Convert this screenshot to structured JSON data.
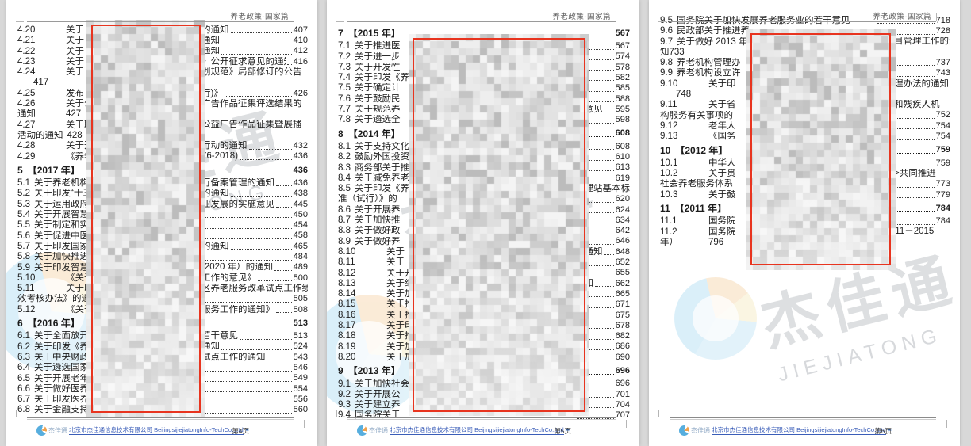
{
  "header": {
    "title": "养老政策-国家篇"
  },
  "watermark": {
    "cn": "杰佳通",
    "en": "JIEJIATONG"
  },
  "footer": {
    "logo_cn": "杰佳通",
    "company_cn": "北京市杰佳通信息技术有限公司",
    "company_en": "BeijingsijiejiatongInfo-TechCo.,Ltd",
    "link_mark": "≡"
  },
  "colors": {
    "redact_border": "#e8341f",
    "footer_link": "#3a5db8",
    "body_text": "#1c1c1c"
  },
  "pages": [
    {
      "page_label": "第4页",
      "rows": [
        {
          "n": "4.20",
          "t": 1,
          "a": "关于",
          "b": "的通知",
          "d": 1,
          "p": "407"
        },
        {
          "n": "4.21",
          "t": 1,
          "a": "关于",
          "b": "通知",
          "d": 1,
          "p": "410"
        },
        {
          "n": "4.22",
          "t": 1,
          "a": "关于",
          "b": "通知",
          "d": 1,
          "p": "412"
        },
        {
          "n": "4.23",
          "t": 1,
          "a": "关于",
          "b": "》公开征求意见的通知",
          "d": 1,
          "p": "416"
        },
        {
          "n": "4.24",
          "t": 1,
          "a": "关于",
          "b": "划规范》局部修订的公告"
        },
        {
          "a": "417",
          "i": 1
        },
        {
          "n": "4.25",
          "t": 1,
          "a": "发布《",
          "b": "行)》",
          "d": 1,
          "p": "426"
        },
        {
          "n": "4.26",
          "t": 1,
          "a": "关于公",
          "b": "广告作品征集评选结果的"
        },
        {
          "n": "通知",
          "t": 1,
          "a": "427"
        },
        {
          "n": "4.27",
          "t": 1,
          "a": "关于联",
          "b": "公益广告作品征集暨展播"
        },
        {
          "n": "活动的通知",
          "t": 1,
          "a": "428"
        },
        {
          "n": "4.28",
          "t": 1,
          "a": "关于开",
          "b": "行动的通知",
          "d": 1,
          "p": "432"
        },
        {
          "n": "4.29",
          "t": 1,
          "a": "《养老",
          "b": "76-2018)",
          "d": 1,
          "p": "436"
        },
        {
          "n": "5",
          "a": "【2017 年】",
          "s": 1,
          "d": 1,
          "p": "436"
        },
        {
          "n": "5.1",
          "a": "关于养老机构内",
          "b": "行备案管理的通知",
          "d": 1,
          "p": "436"
        },
        {
          "n": "5.2",
          "a": "关于印发“十三",
          "b": "的通知",
          "d": 1,
          "p": "438"
        },
        {
          "n": "5.3",
          "a": "关于运用政府和",
          "b": "业发展的实施意见",
          "d": 1,
          "p": "445"
        },
        {
          "n": "5.4",
          "a": "关于开展智慧",
          "d": 1,
          "p": "450"
        },
        {
          "n": "5.5",
          "a": "关于制定和实",
          "d": 1,
          "p": "454"
        },
        {
          "n": "5.6",
          "a": "关于促进中医",
          "d": 1,
          "p": "458"
        },
        {
          "n": "5.7",
          "a": "关于印发国家",
          "b": "的通知",
          "d": 1,
          "p": "465"
        },
        {
          "n": "5.8",
          "a": "关于加快推进",
          "d": 1,
          "p": "484"
        },
        {
          "n": "5.9",
          "a": "关于印发智慧",
          "b": "-2020 年）的通知",
          "d": 1,
          "p": "489"
        },
        {
          "n": "5.10",
          "t": 1,
          "a": "《关于",
          "b": "工作的意见》",
          "d": 1,
          "p": "500"
        },
        {
          "n": "5.11",
          "t": 1,
          "a": "关于印",
          "b": "区养老服务改革试点工作绩"
        },
        {
          "a": "效考核办法》的通",
          "d": 1,
          "p": "505"
        },
        {
          "n": "5.12",
          "t": 1,
          "a": "《关于",
          "b": "服务工作的通知》",
          "d": 1,
          "p": "508"
        },
        {
          "n": "6",
          "a": "【2016 年】",
          "s": 1,
          "d": 1,
          "p": "513"
        },
        {
          "n": "6.1",
          "a": "关于全面放开养",
          "b": "若干意见",
          "d": 1,
          "p": "513"
        },
        {
          "n": "6.2",
          "a": "关于印发《养老",
          "b": "通知",
          "d": 1,
          "p": "524"
        },
        {
          "n": "6.3",
          "a": "关于中央财政支",
          "b": "试点工作的通知",
          "d": 1,
          "p": "543"
        },
        {
          "n": "6.4",
          "a": "关于遴选国家级",
          "d": 1,
          "p": "546"
        },
        {
          "n": "6.5",
          "a": "关于开展老年人",
          "d": 1,
          "p": "549"
        },
        {
          "n": "6.6",
          "a": "关于做好医养结",
          "d": 1,
          "p": "554"
        },
        {
          "n": "6.7",
          "a": "关于印发医养结",
          "d": 1,
          "p": "556"
        },
        {
          "n": "6.8",
          "a": "关于金融支持养",
          "d": 1,
          "p": "560"
        }
      ]
    },
    {
      "page_label": "第5页",
      "rows": [
        {
          "n": "7",
          "a": "【2015 年】",
          "s": 1,
          "d": 1,
          "p": "567"
        },
        {
          "n": "7.1",
          "a": "关于推进医",
          "d": 1,
          "p": "567"
        },
        {
          "n": "7.2",
          "a": "关于进一步",
          "d": 1,
          "p": "574"
        },
        {
          "n": "7.3",
          "a": "关于开发性",
          "d": 1,
          "p": "578"
        },
        {
          "n": "7.4",
          "a": "关于印发《养",
          "d": 1,
          "p": "582"
        },
        {
          "n": "7.5",
          "a": "关于确定计",
          "d": 1,
          "p": "585"
        },
        {
          "n": "7.6",
          "a": "关于鼓励民",
          "d": 1,
          "p": "588"
        },
        {
          "n": "7.7",
          "a": "关于规范养",
          "b": "导意见",
          "d": 1,
          "p": "595"
        },
        {
          "n": "7.8",
          "a": "关于遴选全",
          "d": 1,
          "p": "598"
        },
        {
          "n": "8",
          "a": "【2014 年】",
          "s": 1,
          "d": 1,
          "p": "608"
        },
        {
          "n": "8.1",
          "a": "关于支持文化",
          "d": 1,
          "p": "608"
        },
        {
          "n": "8.2",
          "a": "鼓励外国投资",
          "d": 1,
          "p": "610"
        },
        {
          "n": "8.3",
          "a": "商务部关于推",
          "d": 1,
          "p": "613"
        },
        {
          "n": "8.4",
          "a": "关于减免养老",
          "d": 1,
          "p": "619"
        },
        {
          "n": "8.5",
          "a": "关于印发《养",
          "b": "护理站基本标"
        },
        {
          "a": "准（试行）》的",
          "d": 1,
          "p": "620"
        },
        {
          "n": "8.6",
          "a": "关于开展养",
          "d": 1,
          "p": "624"
        },
        {
          "n": "8.7",
          "a": "关于加快推",
          "d": 1,
          "p": "634"
        },
        {
          "n": "8.8",
          "a": "关于做好政",
          "d": 1,
          "p": "642"
        },
        {
          "n": "8.9",
          "a": "关于做好养",
          "d": 1,
          "p": "646"
        },
        {
          "n": "8.10",
          "t": 1,
          "a": "关于",
          "b": "的通知",
          "d": 1,
          "p": "648"
        },
        {
          "n": "8.11",
          "t": 1,
          "a": "关于",
          "d": 1,
          "p": "652"
        },
        {
          "n": "8.12",
          "t": 1,
          "a": "关于开",
          "d": 1,
          "p": "655"
        },
        {
          "n": "8.13",
          "t": 1,
          "a": "关于继",
          "b": "通知",
          "d": 1,
          "p": "662"
        },
        {
          "n": "8.14",
          "t": 1,
          "a": "关于加",
          "d": 1,
          "p": "665"
        },
        {
          "n": "8.15",
          "t": 1,
          "a": "关于推",
          "d": 1,
          "p": "671"
        },
        {
          "n": "8.16",
          "t": 1,
          "a": "关于推",
          "d": 1,
          "p": "675"
        },
        {
          "n": "8.17",
          "t": 1,
          "a": "关于印",
          "d": 1,
          "p": "678"
        },
        {
          "n": "8.18",
          "t": 1,
          "a": "关于推",
          "d": 1,
          "p": "682"
        },
        {
          "n": "8.19",
          "t": 1,
          "a": "关于加",
          "d": 1,
          "p": "686"
        },
        {
          "n": "8.20",
          "t": 1,
          "a": "关于加",
          "d": 1,
          "p": "690"
        },
        {
          "n": "9",
          "a": "【2013 年】",
          "s": 1,
          "d": 1,
          "p": "696"
        },
        {
          "n": "9.1",
          "a": "关于加快社会",
          "d": 1,
          "p": "696"
        },
        {
          "n": "9.2",
          "a": "关于开展公",
          "d": 1,
          "p": "701"
        },
        {
          "n": "9.3",
          "a": "关于建立养",
          "b": "知",
          "d": 1,
          "p": "704"
        },
        {
          "n": "9.4",
          "a": "国务院关于",
          "d": 1,
          "p": "707"
        }
      ]
    },
    {
      "page_label": "第6页",
      "rows": [
        {
          "n": "9.5",
          "a": "国务院关于加快发展养老服务业的若干意见",
          "d": 1,
          "p": "718"
        },
        {
          "n": "9.6",
          "a": "民政部关于推进养",
          "d": 1,
          "p": "728"
        },
        {
          "n": "9.7",
          "a": "关于做好 2013 年",
          "b": "院项目管理工作的通"
        },
        {
          "a": "知733"
        },
        {
          "n": "9.8",
          "a": "养老机构管理办",
          "d": 1,
          "p": "737"
        },
        {
          "n": "9.9",
          "a": "养老机构设立许",
          "d": 1,
          "p": "743"
        },
        {
          "n": "9.10",
          "t": 1,
          "a": "关于印",
          "b": "目管理办法的通知"
        },
        {
          "a": "748",
          "i": 1
        },
        {
          "n": "9.11",
          "t": 1,
          "a": "关于省",
          "b": "机构和残疾人机"
        },
        {
          "a": "构服务有关事项的",
          "d": 1,
          "p": "752"
        },
        {
          "n": "9.12",
          "t": 1,
          "a": "老年人",
          "d": 1,
          "p": "754"
        },
        {
          "n": "9.13",
          "t": 1,
          "a": "《国务",
          "d": 1,
          "p": "754"
        },
        {
          "n": "10",
          "a": "【2012 年】",
          "s": 1,
          "d": 1,
          "p": "759"
        },
        {
          "n": "10.1",
          "t": 1,
          "a": "中华人",
          "b": "号)",
          "d": 1,
          "p": "759"
        },
        {
          "n": "10.2",
          "t": 1,
          "a": "关于贯",
          "b": "协议>共同推进"
        },
        {
          "a": "社会养老服务体系",
          "d": 1,
          "p": "773"
        },
        {
          "n": "10.3",
          "t": 1,
          "a": "关于鼓",
          "b": "见",
          "d": 1,
          "p": "779"
        },
        {
          "n": "11",
          "a": "【2011 年】",
          "s": 1,
          "d": 1,
          "p": "784"
        },
        {
          "n": "11.1",
          "t": 1,
          "a": "国务院",
          "b": "知",
          "d": 1,
          "p": "784"
        },
        {
          "n": "11.2",
          "t": 1,
          "a": "国务院",
          "b": "（2011－2015"
        },
        {
          "n": "年）",
          "t": 1,
          "a": "796"
        }
      ]
    }
  ]
}
